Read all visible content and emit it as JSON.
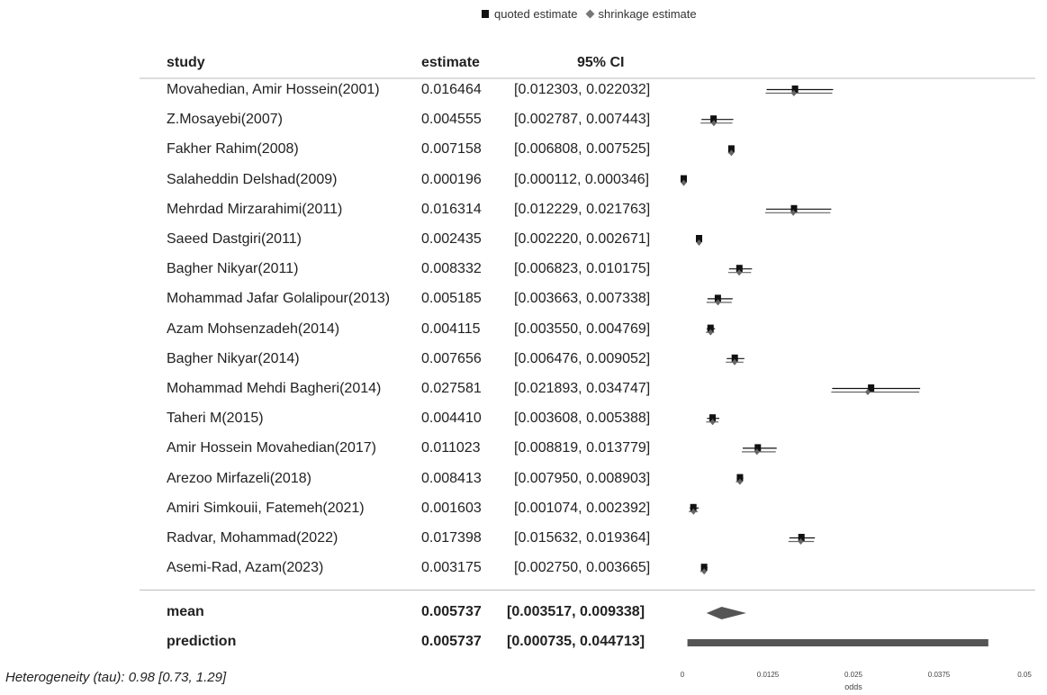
{
  "legend": {
    "quoted": "quoted estimate",
    "shrinkage": "shrinkage estimate"
  },
  "headers": {
    "study": "study",
    "estimate": "estimate",
    "ci": "95% CI"
  },
  "heterogeneity": "Heterogeneity (tau): 0.98 [0.73, 1.29]",
  "chart_data": {
    "type": "forest",
    "xlabel": "odds",
    "xlim": [
      0,
      0.05
    ],
    "xticks": [
      "0",
      "0.0125",
      "0.025",
      "0.0375",
      "0.05"
    ],
    "xtick_values": [
      0,
      0.0125,
      0.025,
      0.0375,
      0.05
    ],
    "series": [
      {
        "name": "quoted estimate"
      },
      {
        "name": "shrinkage estimate"
      }
    ],
    "studies": [
      {
        "study": "Movahedian, Amir Hossein(2001)",
        "estimate_text": "0.016464",
        "ci_text": "[0.012303, 0.022032]",
        "est": 0.016464,
        "lo": 0.012303,
        "hi": 0.022032,
        "shrink": 0.0163
      },
      {
        "study": "Z.Mosayebi(2007)",
        "estimate_text": "0.004555",
        "ci_text": "[0.002787, 0.007443]",
        "est": 0.004555,
        "lo": 0.002787,
        "hi": 0.007443,
        "shrink": 0.0046
      },
      {
        "study": "Fakher Rahim(2008)",
        "estimate_text": "0.007158",
        "ci_text": "[0.006808, 0.007525]",
        "est": 0.007158,
        "lo": 0.006808,
        "hi": 0.007525,
        "shrink": 0.00716
      },
      {
        "study": "Salaheddin Delshad(2009)",
        "estimate_text": "0.000196",
        "ci_text": "[0.000112, 0.000346]",
        "est": 0.000196,
        "lo": 0.000112,
        "hi": 0.000346,
        "shrink": 0.0002
      },
      {
        "study": "Mehrdad Mirzarahimi(2011)",
        "estimate_text": "0.016314",
        "ci_text": "[0.012229, 0.021763]",
        "est": 0.016314,
        "lo": 0.012229,
        "hi": 0.021763,
        "shrink": 0.0162
      },
      {
        "study": "Saeed Dastgiri(2011)",
        "estimate_text": "0.002435",
        "ci_text": "[0.002220, 0.002671]",
        "est": 0.002435,
        "lo": 0.00222,
        "hi": 0.002671,
        "shrink": 0.00244
      },
      {
        "study": "Bagher Nikyar(2011)",
        "estimate_text": "0.008332",
        "ci_text": "[0.006823, 0.010175]",
        "est": 0.008332,
        "lo": 0.006823,
        "hi": 0.010175,
        "shrink": 0.0083
      },
      {
        "study": "Mohammad Jafar Golalipour(2013)",
        "estimate_text": "0.005185",
        "ci_text": "[0.003663, 0.007338]",
        "est": 0.005185,
        "lo": 0.003663,
        "hi": 0.007338,
        "shrink": 0.0052
      },
      {
        "study": "Azam Mohsenzadeh(2014)",
        "estimate_text": "0.004115",
        "ci_text": "[0.003550, 0.004769]",
        "est": 0.004115,
        "lo": 0.00355,
        "hi": 0.004769,
        "shrink": 0.00412
      },
      {
        "study": "Bagher Nikyar(2014)",
        "estimate_text": "0.007656",
        "ci_text": "[0.006476, 0.009052]",
        "est": 0.007656,
        "lo": 0.006476,
        "hi": 0.009052,
        "shrink": 0.00764
      },
      {
        "study": "Mohammad Mehdi Bagheri(2014)",
        "estimate_text": "0.027581",
        "ci_text": "[0.021893, 0.034747]",
        "est": 0.027581,
        "lo": 0.021893,
        "hi": 0.034747,
        "shrink": 0.0271
      },
      {
        "study": "Taheri M(2015)",
        "estimate_text": "0.004410",
        "ci_text": "[0.003608, 0.005388]",
        "est": 0.00441,
        "lo": 0.003608,
        "hi": 0.005388,
        "shrink": 0.00442
      },
      {
        "study": "Amir Hossein Movahedian(2017)",
        "estimate_text": "0.011023",
        "ci_text": "[0.008819, 0.013779]",
        "est": 0.011023,
        "lo": 0.008819,
        "hi": 0.013779,
        "shrink": 0.0109
      },
      {
        "study": "Arezoo Mirfazeli(2018)",
        "estimate_text": "0.008413",
        "ci_text": "[0.007950, 0.008903]",
        "est": 0.008413,
        "lo": 0.00795,
        "hi": 0.008903,
        "shrink": 0.0084
      },
      {
        "study": "Amiri Simkouii, Fatemeh(2021)",
        "estimate_text": "0.001603",
        "ci_text": "[0.001074, 0.002392]",
        "est": 0.001603,
        "lo": 0.001074,
        "hi": 0.002392,
        "shrink": 0.00162
      },
      {
        "study": "Radvar, Mohammad(2022)",
        "estimate_text": "0.017398",
        "ci_text": "[0.015632, 0.019364]",
        "est": 0.017398,
        "lo": 0.015632,
        "hi": 0.019364,
        "shrink": 0.0173
      },
      {
        "study": "Asemi-Rad, Azam(2023)",
        "estimate_text": "0.003175",
        "ci_text": "[0.002750, 0.003665]",
        "est": 0.003175,
        "lo": 0.00275,
        "hi": 0.003665,
        "shrink": 0.00318
      }
    ],
    "summary": {
      "mean": {
        "label": "mean",
        "estimate_text": "0.005737",
        "ci_text": "[0.003517, 0.009338]",
        "est": 0.005737,
        "lo": 0.003517,
        "hi": 0.009338
      },
      "prediction": {
        "label": "prediction",
        "estimate_text": "0.005737",
        "ci_text": "[0.000735, 0.044713]",
        "est": 0.005737,
        "lo": 0.000735,
        "hi": 0.044713
      }
    }
  }
}
